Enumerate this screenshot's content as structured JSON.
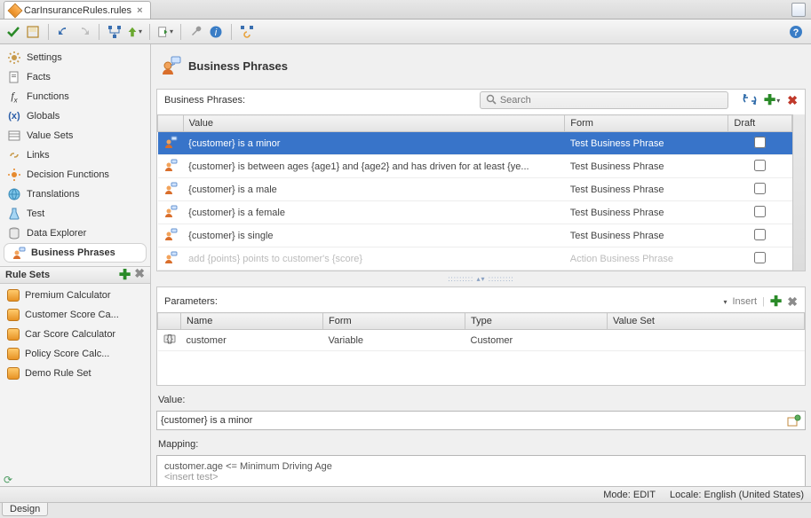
{
  "file_tab": {
    "name": "CarInsuranceRules.rules"
  },
  "nav": {
    "items": [
      {
        "key": "settings",
        "label": "Settings",
        "icon": "gear-icon"
      },
      {
        "key": "facts",
        "label": "Facts",
        "icon": "doc-icon"
      },
      {
        "key": "functions",
        "label": "Functions",
        "icon": "fx-icon"
      },
      {
        "key": "globals",
        "label": "Globals",
        "icon": "xparen-icon"
      },
      {
        "key": "valuesets",
        "label": "Value Sets",
        "icon": "list-icon"
      },
      {
        "key": "links",
        "label": "Links",
        "icon": "link-icon"
      },
      {
        "key": "decisionfns",
        "label": "Decision Functions",
        "icon": "gear-orange-icon"
      },
      {
        "key": "translations",
        "label": "Translations",
        "icon": "globe-icon"
      },
      {
        "key": "test",
        "label": "Test",
        "icon": "flask-icon"
      },
      {
        "key": "dataexplorer",
        "label": "Data Explorer",
        "icon": "db-icon"
      },
      {
        "key": "businessphrases",
        "label": "Business Phrases",
        "icon": "person-icon",
        "selected": true
      }
    ]
  },
  "rule_sets": {
    "title": "Rule Sets",
    "items": [
      "Premium Calculator",
      "Customer Score Ca...",
      "Car Score Calculator",
      "Policy Score Calc...",
      "Demo Rule Set"
    ]
  },
  "page": {
    "title": "Business Phrases"
  },
  "phrases": {
    "label": "Business Phrases:",
    "search_placeholder": "Search",
    "columns": {
      "value": "Value",
      "form": "Form",
      "draft": "Draft"
    },
    "rows": [
      {
        "value": "{customer} is a minor",
        "form": "Test Business Phrase",
        "draft": false,
        "selected": true
      },
      {
        "value": "{customer} is between ages {age1}  and {age2} and has driven for at least {ye...",
        "form": "Test Business Phrase",
        "draft": false
      },
      {
        "value": "{customer} is a male",
        "form": "Test Business Phrase",
        "draft": false
      },
      {
        "value": "{customer} is a female",
        "form": "Test Business Phrase",
        "draft": false
      },
      {
        "value": "{customer} is single",
        "form": "Test Business Phrase",
        "draft": false
      },
      {
        "value": "add {points} points to customer's {score}",
        "form": "Action Business Phrase",
        "draft": false,
        "truncated": true
      }
    ]
  },
  "parameters": {
    "label": "Parameters:",
    "insert_label": "Insert",
    "columns": {
      "name": "Name",
      "form": "Form",
      "type": "Type",
      "valueset": "Value Set"
    },
    "rows": [
      {
        "name": "customer",
        "form": "Variable",
        "type": "Customer",
        "valueset": ""
      }
    ]
  },
  "value_field": {
    "label": "Value:",
    "text": "{customer} is a minor"
  },
  "mapping": {
    "label": "Mapping:",
    "line1": "customer.age  <=  Minimum Driving Age",
    "insert": "<insert test>"
  },
  "status": {
    "mode_label": "Mode:",
    "mode": "EDIT",
    "locale_label": "Locale:",
    "locale": "English (United States)"
  },
  "bottom_tab": {
    "label": "Design"
  }
}
